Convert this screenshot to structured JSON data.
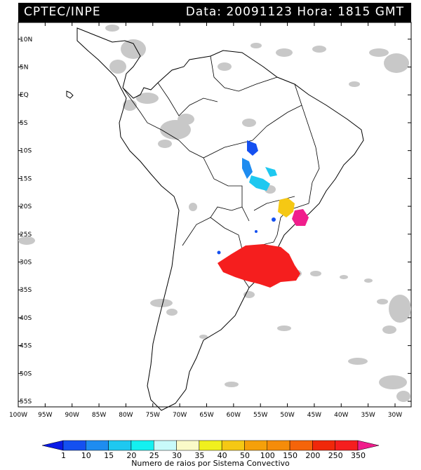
{
  "header": {
    "left": "CPTEC/INPE",
    "right": "Data: 20091123 Hora: 1815 GMT"
  },
  "map": {
    "lat_labels": [
      "10N",
      "5N",
      "EQ",
      "5S",
      "10S",
      "15S",
      "20S",
      "25S",
      "30S",
      "35S",
      "40S",
      "45S",
      "50S",
      "55S"
    ],
    "lon_labels": [
      "100W",
      "95W",
      "90W",
      "85W",
      "80W",
      "75W",
      "70W",
      "65W",
      "60W",
      "55W",
      "50W",
      "45W",
      "40W",
      "35W",
      "30W"
    ],
    "extent": {
      "lon": [
        -100,
        -27
      ],
      "lat": [
        -56,
        13
      ]
    },
    "background_color": "#ffffff",
    "cloud_color": "#c8c8c8",
    "border_color": "#000000"
  },
  "legend": {
    "ticks": [
      "1",
      "10",
      "15",
      "20",
      "25",
      "30",
      "35",
      "40",
      "50",
      "100",
      "150",
      "200",
      "250",
      "350"
    ],
    "caption": "Numero de raios por Sistema Convectivo",
    "colors": [
      "#0a1ae6",
      "#1450f0",
      "#1e8cf0",
      "#1ec8f0",
      "#14f0f0",
      "#c8fafa",
      "#fafac8",
      "#f0f01e",
      "#f5c814",
      "#f5a00a",
      "#f58c0a",
      "#f5640a",
      "#f0280a",
      "#f51e1e",
      "#f01e8c"
    ]
  }
}
